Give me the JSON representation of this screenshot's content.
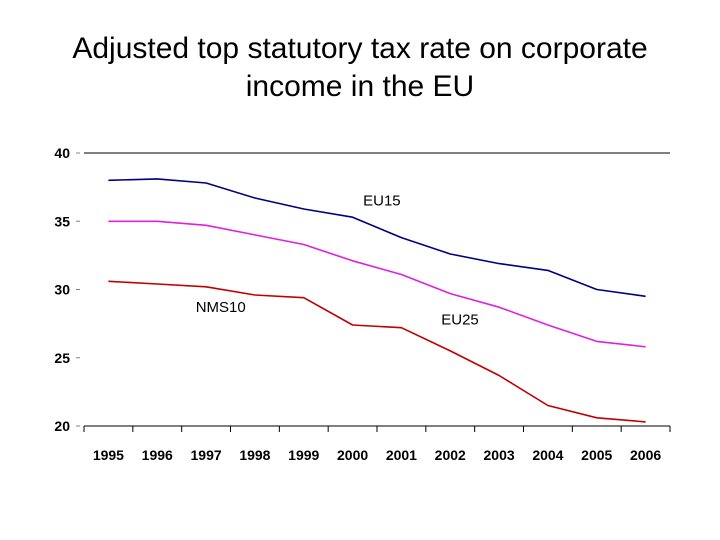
{
  "title_lines": [
    "Adjusted top statutory tax rate on corporate",
    "income in the EU"
  ],
  "colors": {
    "EU15": "#000080",
    "EU25": "#e020e0",
    "NMS10": "#c00000",
    "grid": "#000000",
    "axis": "#808080"
  },
  "chart_data": {
    "type": "line",
    "title": "Adjusted top statutory tax rate on corporate income in the EU",
    "xlabel": "",
    "ylabel": "",
    "ylim": [
      20,
      40
    ],
    "yticks": [
      20,
      25,
      30,
      35,
      40
    ],
    "grid": true,
    "categories": [
      "1995",
      "1996",
      "1997",
      "1998",
      "1999",
      "2000",
      "2001",
      "2002",
      "2003",
      "2004",
      "2005",
      "2006"
    ],
    "series": [
      {
        "name": "EU15",
        "label": "EU15",
        "values": [
          38.0,
          38.1,
          37.8,
          36.7,
          35.9,
          35.3,
          33.8,
          32.6,
          31.9,
          31.4,
          30.0,
          29.5
        ]
      },
      {
        "name": "EU25",
        "label": "EU25",
        "values": [
          35.0,
          35.0,
          34.7,
          34.0,
          33.3,
          32.1,
          31.1,
          29.7,
          28.7,
          27.4,
          26.2,
          25.8
        ]
      },
      {
        "name": "NMS10",
        "label": "NMS10",
        "values": [
          30.6,
          30.4,
          30.2,
          29.6,
          29.4,
          27.4,
          27.2,
          25.5,
          23.7,
          21.5,
          20.6,
          20.3
        ]
      }
    ]
  }
}
